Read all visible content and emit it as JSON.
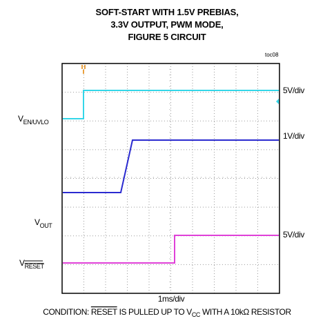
{
  "title_lines": [
    "SOFT-START WITH 1.5V PREBIAS,",
    "3.3V OUTPUT, PWM MODE,",
    "FIGURE 5 CIRCUIT"
  ],
  "figure_id": "toc08",
  "channels": [
    {
      "name": "V",
      "sub": "EN/UVLO",
      "scale": "5V/div"
    },
    {
      "scale": "1V/div"
    },
    {
      "name": "V",
      "sub": "OUT",
      "scale": "5V/div"
    },
    {
      "name": "V",
      "sub": "RESET"
    }
  ],
  "time_scale": "1ms/div",
  "condition": {
    "lead": "CONDITION: ",
    "signal": "RESET",
    "mid": " IS PULLED UP TO V",
    "sub": "CC",
    "tail": " WITH A 10kΩ RESISTOR"
  }
}
